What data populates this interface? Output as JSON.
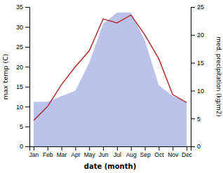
{
  "chart_data": {
    "type": "line",
    "categories": [
      "Jan",
      "Feb",
      "Mar",
      "Apr",
      "May",
      "Jun",
      "Jul",
      "Aug",
      "Sep",
      "Oct",
      "Nov",
      "Dec"
    ],
    "series": [
      {
        "type": "area",
        "axis": "y2",
        "color": "#b0b8e8",
        "values": [
          8,
          8,
          9,
          10,
          15,
          22,
          24,
          24,
          19,
          11,
          9,
          8
        ]
      },
      {
        "type": "line",
        "color": "#b03030",
        "values": [
          6.5,
          10.0,
          15.5,
          20.0,
          24.0,
          32.0,
          31.0,
          33.0,
          28.0,
          22.0,
          13.0,
          11.0
        ]
      }
    ],
    "xlabel": "date (month)",
    "ylabel": "max temp (C)",
    "y2label": "med. precipitation (kg/m2)",
    "ylim": [
      0,
      35
    ],
    "yticks": [
      0,
      5,
      10,
      15,
      20,
      25,
      30,
      35
    ],
    "y2lim": [
      0,
      25
    ],
    "y2ticks": [
      0,
      5,
      10,
      15,
      20,
      25
    ],
    "grid": false
  }
}
